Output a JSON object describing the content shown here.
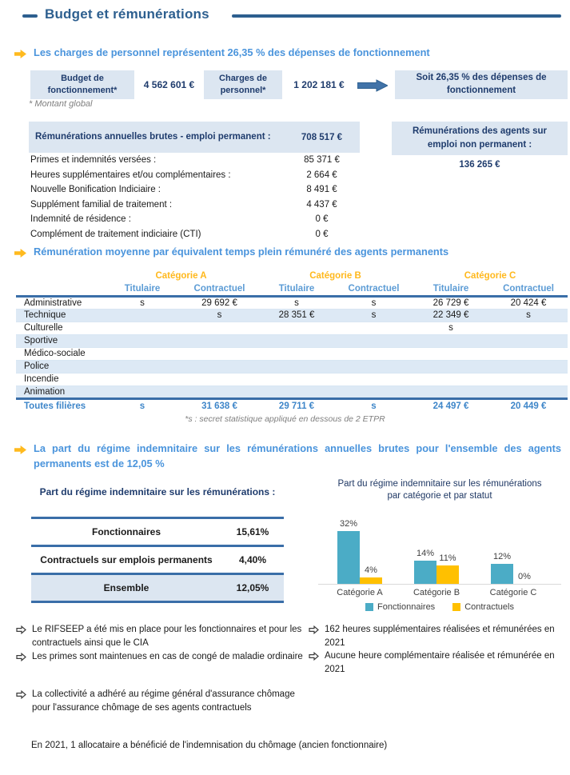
{
  "page": {
    "title": "Budget et rémunérations"
  },
  "colors": {
    "title_navy": "#2d5f8f",
    "heading_blue": "#4a94dc",
    "accent_yellow": "#ffba1e",
    "light_blue_bg": "#dce6f1",
    "box_text_navy": "#1f3c6d",
    "table_border_blue": "#3a6ea8",
    "subheader_blue": "#5b9bd5",
    "category_orange": "#ffb81c",
    "total_row_blue": "#3e86c9",
    "row_shade": "#dde9f5",
    "chart_teal": "#4bacc6",
    "chart_yellow": "#ffc000",
    "footnote_gray": "#7f7f7f"
  },
  "section1": {
    "heading": "Les charges de personnel représentent 26,35 % des dépenses de fonctionnement",
    "budget_box": {
      "label": "Budget de fonctionnement*",
      "value": "4 562 601 €"
    },
    "charges_box": {
      "label": "Charges de personnel*",
      "value": "1 202 181 €"
    },
    "result_box": "Soit 26,35 % des dépenses de fonctionnement",
    "footnote": "* Montant global",
    "remuneration_table": {
      "header": {
        "label": "Rémunérations annuelles brutes - emploi permanent :",
        "value": "708 517 €"
      },
      "rows": [
        {
          "label": "Primes et indemnités versées :",
          "value": "85 371 €"
        },
        {
          "label": "Heures supplémentaires et/ou complémentaires :",
          "value": "2 664 €"
        },
        {
          "label": "Nouvelle Bonification Indiciaire :",
          "value": "8 491 €"
        },
        {
          "label": "Supplément familial de traitement :",
          "value": "4 437 €"
        },
        {
          "label": "Indemnité de résidence :",
          "value": "0 €"
        },
        {
          "label": "Complément de traitement indiciaire (CTI)",
          "value": "0 €"
        }
      ]
    },
    "non_permanent_box": {
      "label": "Rémunérations des agents sur emploi non permanent :",
      "value": "136 265 €"
    }
  },
  "section2": {
    "heading": "Rémunération moyenne par équivalent temps plein rémunéré des agents permanents",
    "table": {
      "category_headers": [
        "Catégorie A",
        "Catégorie B",
        "Catégorie C"
      ],
      "sub_headers": [
        "Titulaire",
        "Contractuel",
        "Titulaire",
        "Contractuel",
        "Titulaire",
        "Contractuel"
      ],
      "rows": [
        {
          "label": "Administrative",
          "values": [
            "s",
            "29 692 €",
            "s",
            "s",
            "26 729 €",
            "20 424 €"
          ]
        },
        {
          "label": "Technique",
          "values": [
            "",
            "s",
            "28 351 €",
            "s",
            "22 349 €",
            "s"
          ]
        },
        {
          "label": "Culturelle",
          "values": [
            "",
            "",
            "",
            "",
            "s",
            ""
          ]
        },
        {
          "label": "Sportive",
          "values": [
            "",
            "",
            "",
            "",
            "",
            ""
          ]
        },
        {
          "label": "Médico-sociale",
          "values": [
            "",
            "",
            "",
            "",
            "",
            ""
          ]
        },
        {
          "label": "Police",
          "values": [
            "",
            "",
            "",
            "",
            "",
            ""
          ]
        },
        {
          "label": "Incendie",
          "values": [
            "",
            "",
            "",
            "",
            "",
            ""
          ]
        },
        {
          "label": "Animation",
          "values": [
            "",
            "",
            "",
            "",
            "",
            ""
          ]
        }
      ],
      "total_row": {
        "label": "Toutes filières",
        "values": [
          "s",
          "31 638 €",
          "29 711 €",
          "s",
          "24 497 €",
          "20 449 €"
        ]
      },
      "footnote": "*s : secret statistique appliqué en dessous de 2 ETPR"
    }
  },
  "section3": {
    "heading": "La part du régime indemnitaire sur les rémunérations annuelles brutes pour l'ensemble des agents permanents est de 12,05 %",
    "table": {
      "title": "Part du régime indemnitaire sur les rémunérations :",
      "rows": [
        {
          "label": "Fonctionnaires",
          "value": "15,61%"
        },
        {
          "label": "Contractuels sur emplois permanents",
          "value": "4,40%"
        },
        {
          "label": "Ensemble",
          "value": "12,05%"
        }
      ]
    }
  },
  "chart_data": {
    "type": "bar",
    "title": "Part du régime indemnitaire sur les rémunérations par catégorie et par statut",
    "title_line1": "Part du régime indemnitaire sur les rémunérations",
    "title_line2": "par catégorie et par statut",
    "categories": [
      "Catégorie A",
      "Catégorie B",
      "Catégorie C"
    ],
    "series": [
      {
        "name": "Fonctionnaires",
        "color": "#4bacc6",
        "values": [
          32,
          14,
          12
        ],
        "labels": [
          "32%",
          "14%",
          "12%"
        ]
      },
      {
        "name": "Contractuels",
        "color": "#ffc000",
        "values": [
          4,
          11,
          0
        ],
        "labels": [
          "4%",
          "11%",
          "0%"
        ]
      }
    ],
    "unit": "%",
    "ylim": [
      0,
      35
    ],
    "gridlines": false,
    "legend_position": "bottom"
  },
  "notes": {
    "left": [
      "Le RIFSEEP a été mis en place pour les fonctionnaires et pour les contractuels ainsi que le CIA",
      "Les primes sont maintenues en cas de congé de maladie ordinaire",
      "La collectivité a adhéré au régime général d'assurance chômage pour l'assurance chômage de ses agents contractuels"
    ],
    "right": [
      "162 heures supplémentaires réalisées et rémunérées en 2021",
      "Aucune heure complémentaire réalisée et rémunérée en 2021"
    ],
    "footer": "En 2021, 1 allocataire a bénéficié de l'indemnisation du chômage (ancien fonctionnaire)"
  }
}
